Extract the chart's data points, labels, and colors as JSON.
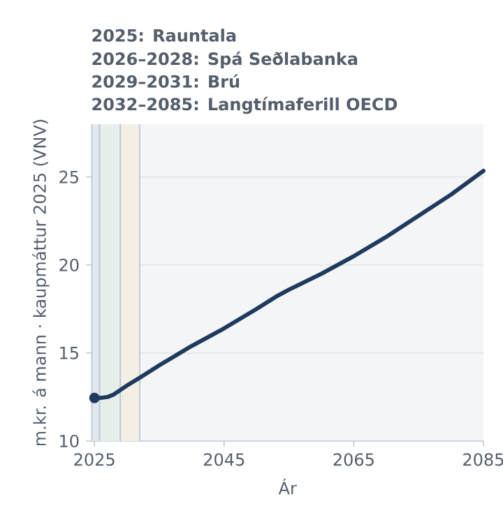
{
  "chart_data": {
    "type": "line",
    "annotations": [
      "2025: Rauntala",
      "2026–2028: Spá Seðlabanka",
      "2029–2031: Brú",
      "2032–2085: Langtímaferill OECD"
    ],
    "xlabel": "Ár",
    "ylabel": "m.kr. á mann · kaupmáttur 2025 (VNV)",
    "x": [
      2025,
      2026,
      2027,
      2028,
      2029,
      2030,
      2032,
      2035,
      2040,
      2045,
      2050,
      2053,
      2055,
      2060,
      2065,
      2070,
      2075,
      2080,
      2085
    ],
    "series": [
      {
        "color": "#1f3a5f",
        "values": [
          12.45,
          12.45,
          12.5,
          12.65,
          12.9,
          13.15,
          13.6,
          14.3,
          15.4,
          16.4,
          17.5,
          18.2,
          18.6,
          19.5,
          20.5,
          21.6,
          22.8,
          24.0,
          25.35
        ]
      },
      {
        "type": "scatter",
        "marker": "circle",
        "color": "#1f3a5f",
        "x": [
          2025
        ],
        "values": [
          12.45
        ]
      }
    ],
    "xlim": [
      2024.6,
      2085
    ],
    "ylim": [
      10,
      28
    ],
    "xticks": [
      2025,
      2045,
      2065,
      2085
    ],
    "yticks": [
      10,
      15,
      20,
      25
    ],
    "grid": "y",
    "bands": [
      {
        "axis": "x",
        "from": 2024.6,
        "to": 2025.8,
        "color": "#e3e8ee"
      },
      {
        "axis": "x",
        "from": 2025.8,
        "to": 2029,
        "color": "#e6efe9"
      },
      {
        "axis": "x",
        "from": 2029,
        "to": 2032,
        "color": "#f3efe4"
      }
    ]
  }
}
